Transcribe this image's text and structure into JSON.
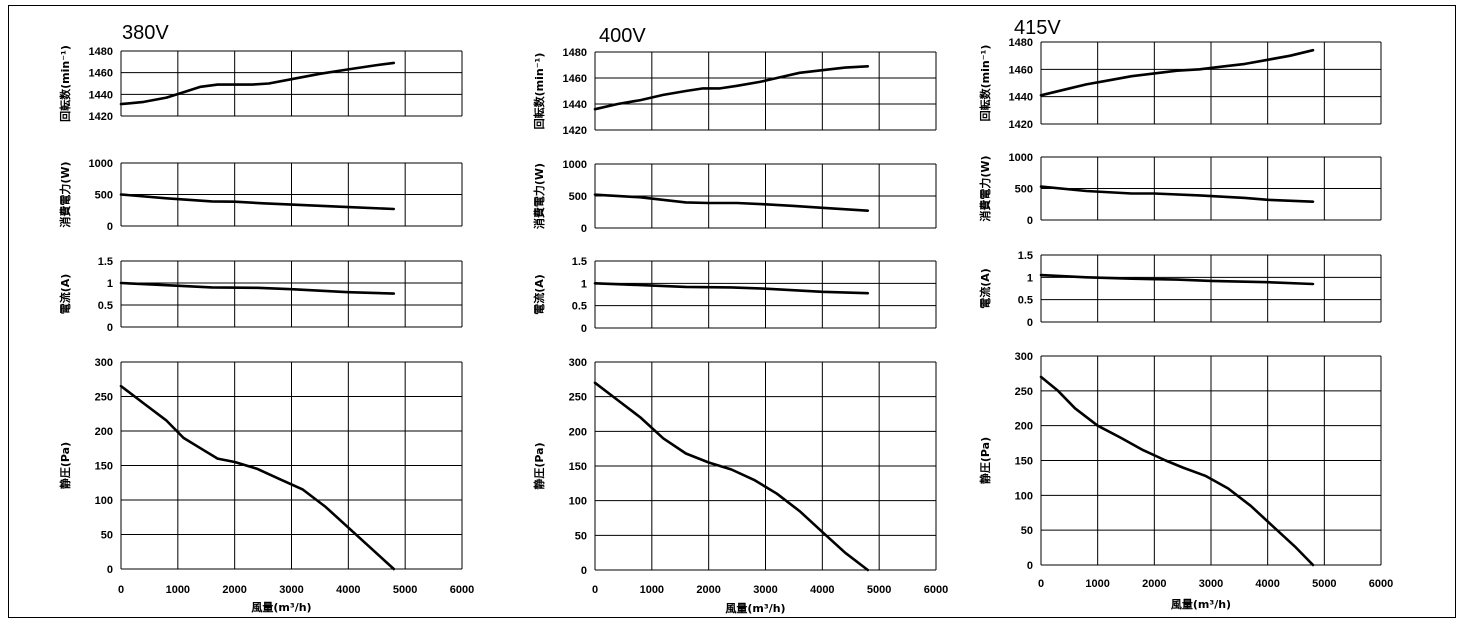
{
  "x_label": "風量(m³/h)",
  "y_labels": {
    "rpm": "回転数(min⁻¹)",
    "power": "消費電力(W)",
    "current": "電流(A)",
    "pressure": "静圧(Pa)"
  },
  "x_ticks": [
    0,
    1000,
    2000,
    3000,
    4000,
    5000,
    6000
  ],
  "chart_data": [
    {
      "type": "line",
      "title": "380V",
      "xlabel": "風量(m³/h)",
      "xlim": [
        0,
        6000
      ],
      "panels": {
        "rpm": {
          "ylabel": "回転数(min⁻¹)",
          "ylim": [
            1420,
            1480
          ],
          "yticks": [
            1420,
            1440,
            1460,
            1480
          ],
          "x": [
            0,
            400,
            800,
            1100,
            1400,
            1700,
            2000,
            2300,
            2600,
            3000,
            3500,
            4000,
            4500,
            4800
          ],
          "y": [
            1431,
            1433,
            1437,
            1442,
            1447,
            1449,
            1449,
            1449,
            1450,
            1454,
            1459,
            1463,
            1467,
            1469
          ]
        },
        "power": {
          "ylabel": "消費電力(W)",
          "ylim": [
            0,
            1000
          ],
          "yticks": [
            0,
            500,
            1000
          ],
          "x": [
            0,
            800,
            1600,
            2000,
            2500,
            3000,
            3500,
            4000,
            4800
          ],
          "y": [
            500,
            440,
            390,
            385,
            360,
            340,
            320,
            300,
            270
          ]
        },
        "current": {
          "ylabel": "電流(A)",
          "ylim": [
            0,
            1.5
          ],
          "yticks": [
            0,
            0.5,
            1,
            1.5
          ],
          "x": [
            0,
            800,
            1600,
            2400,
            3000,
            4000,
            4800
          ],
          "y": [
            1.0,
            0.95,
            0.9,
            0.89,
            0.86,
            0.79,
            0.76
          ]
        },
        "pressure": {
          "ylabel": "静圧(Pa)",
          "ylim": [
            0,
            300
          ],
          "yticks": [
            0,
            50,
            100,
            150,
            200,
            250,
            300
          ],
          "x": [
            0,
            400,
            800,
            1100,
            1400,
            1700,
            2000,
            2400,
            2800,
            3200,
            3600,
            4000,
            4400,
            4800
          ],
          "y": [
            265,
            240,
            215,
            190,
            175,
            160,
            155,
            145,
            130,
            115,
            90,
            60,
            30,
            0
          ]
        }
      }
    },
    {
      "type": "line",
      "title": "400V",
      "xlabel": "風量(m³/h)",
      "xlim": [
        0,
        6000
      ],
      "panels": {
        "rpm": {
          "ylabel": "回転数(min⁻¹)",
          "ylim": [
            1420,
            1480
          ],
          "yticks": [
            1420,
            1440,
            1460,
            1480
          ],
          "x": [
            0,
            400,
            800,
            1200,
            1600,
            1900,
            2200,
            2500,
            2900,
            3200,
            3600,
            4000,
            4400,
            4800
          ],
          "y": [
            1436,
            1440,
            1443,
            1447,
            1450,
            1452,
            1452,
            1454,
            1457,
            1460,
            1464,
            1466,
            1468,
            1469
          ]
        },
        "power": {
          "ylabel": "消費電力(W)",
          "ylim": [
            0,
            1000
          ],
          "yticks": [
            0,
            500,
            1000
          ],
          "x": [
            0,
            800,
            1600,
            2000,
            2500,
            3000,
            3500,
            4000,
            4800
          ],
          "y": [
            520,
            480,
            400,
            390,
            390,
            370,
            345,
            315,
            270
          ]
        },
        "current": {
          "ylabel": "電流(A)",
          "ylim": [
            0,
            1.5
          ],
          "yticks": [
            0,
            0.5,
            1,
            1.5
          ],
          "x": [
            0,
            800,
            1600,
            2400,
            3000,
            4000,
            4800
          ],
          "y": [
            1.0,
            0.96,
            0.92,
            0.91,
            0.88,
            0.81,
            0.78
          ]
        },
        "pressure": {
          "ylabel": "静圧(Pa)",
          "ylim": [
            0,
            300
          ],
          "yticks": [
            0,
            50,
            100,
            150,
            200,
            250,
            300
          ],
          "x": [
            0,
            400,
            800,
            1200,
            1600,
            2000,
            2400,
            2800,
            3200,
            3600,
            4000,
            4400,
            4800
          ],
          "y": [
            270,
            245,
            220,
            190,
            168,
            155,
            145,
            130,
            110,
            85,
            55,
            25,
            0
          ]
        }
      }
    },
    {
      "type": "line",
      "title": "415V",
      "xlabel": "風量(m³/h)",
      "xlim": [
        0,
        6000
      ],
      "panels": {
        "rpm": {
          "ylabel": "回転数(min⁻¹)",
          "ylim": [
            1420,
            1480
          ],
          "yticks": [
            1420,
            1440,
            1460,
            1480
          ],
          "x": [
            0,
            400,
            800,
            1200,
            1600,
            2000,
            2400,
            2800,
            3200,
            3600,
            4000,
            4400,
            4800
          ],
          "y": [
            1441,
            1445,
            1449,
            1452,
            1455,
            1457,
            1459,
            1460,
            1462,
            1464,
            1467,
            1470,
            1474
          ]
        },
        "power": {
          "ylabel": "消費電力(W)",
          "ylim": [
            0,
            1000
          ],
          "yticks": [
            0,
            500,
            1000
          ],
          "x": [
            0,
            800,
            1600,
            2000,
            2800,
            3600,
            4000,
            4800
          ],
          "y": [
            530,
            460,
            420,
            420,
            390,
            350,
            320,
            290
          ]
        },
        "current": {
          "ylabel": "電流(A)",
          "ylim": [
            0,
            1.5
          ],
          "yticks": [
            0,
            0.5,
            1,
            1.5
          ],
          "x": [
            0,
            800,
            1600,
            2400,
            3000,
            4000,
            4800
          ],
          "y": [
            1.05,
            1.0,
            0.97,
            0.95,
            0.92,
            0.89,
            0.85
          ]
        },
        "pressure": {
          "ylabel": "静圧(Pa)",
          "ylim": [
            0,
            300
          ],
          "yticks": [
            0,
            50,
            100,
            150,
            200,
            250,
            300
          ],
          "x": [
            0,
            300,
            600,
            1000,
            1400,
            1800,
            2200,
            2500,
            2900,
            3300,
            3700,
            4100,
            4500,
            4800
          ],
          "y": [
            270,
            250,
            225,
            200,
            183,
            165,
            150,
            140,
            128,
            110,
            85,
            55,
            25,
            0
          ]
        }
      }
    }
  ]
}
